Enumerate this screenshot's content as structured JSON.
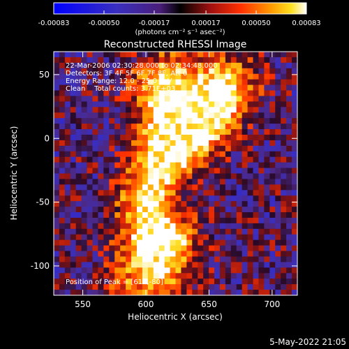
{
  "colorbar": {
    "ticks": [
      "-0.00083",
      "-0.00050",
      "-0.00017",
      "0.00017",
      "0.00050",
      "0.00083"
    ],
    "units": "(photons cm⁻² s⁻¹ asec⁻²)",
    "range": [
      -0.00083,
      0.00083
    ]
  },
  "chart_data": {
    "type": "heatmap",
    "title": "Reconstructed RHESSI Image",
    "xlabel": "Heliocentric X (arcsec)",
    "ylabel": "Heliocentric Y (arcsec)",
    "xlim": [
      527,
      720
    ],
    "ylim": [
      -123,
      68
    ],
    "x_ticks": [
      550,
      600,
      650,
      700
    ],
    "y_ticks": [
      -100,
      -50,
      0,
      50
    ],
    "annotations": [
      "22-Mar-2006 02:30:28.000 to 02:34:48.000",
      "Detectors: 3F 4F 5F 6F 7F 8F, Att 0",
      "Energy Range: 12.0 - 25.0 keV",
      "Clean    Total counts: 3.71E+03"
    ],
    "peak_label": "Position of Peak = [615,-80]",
    "peak": [
      615,
      -80
    ],
    "bright_regions": [
      {
        "x": 615,
        "y": -80,
        "value": 0.00083
      },
      {
        "x": 620,
        "y": -10,
        "value": 0.0007
      },
      {
        "x": 640,
        "y": 10,
        "value": 0.00065
      },
      {
        "x": 610,
        "y": 40,
        "value": 0.0006
      },
      {
        "x": 665,
        "y": 45,
        "value": 0.00055
      },
      {
        "x": 655,
        "y": 25,
        "value": 0.0005
      },
      {
        "x": 600,
        "y": -45,
        "value": 0.00045
      },
      {
        "x": 610,
        "y": -110,
        "value": 0.00045
      }
    ],
    "legend": "none",
    "grid": false
  },
  "footer": {
    "date": "5-May-2022 21:05"
  }
}
